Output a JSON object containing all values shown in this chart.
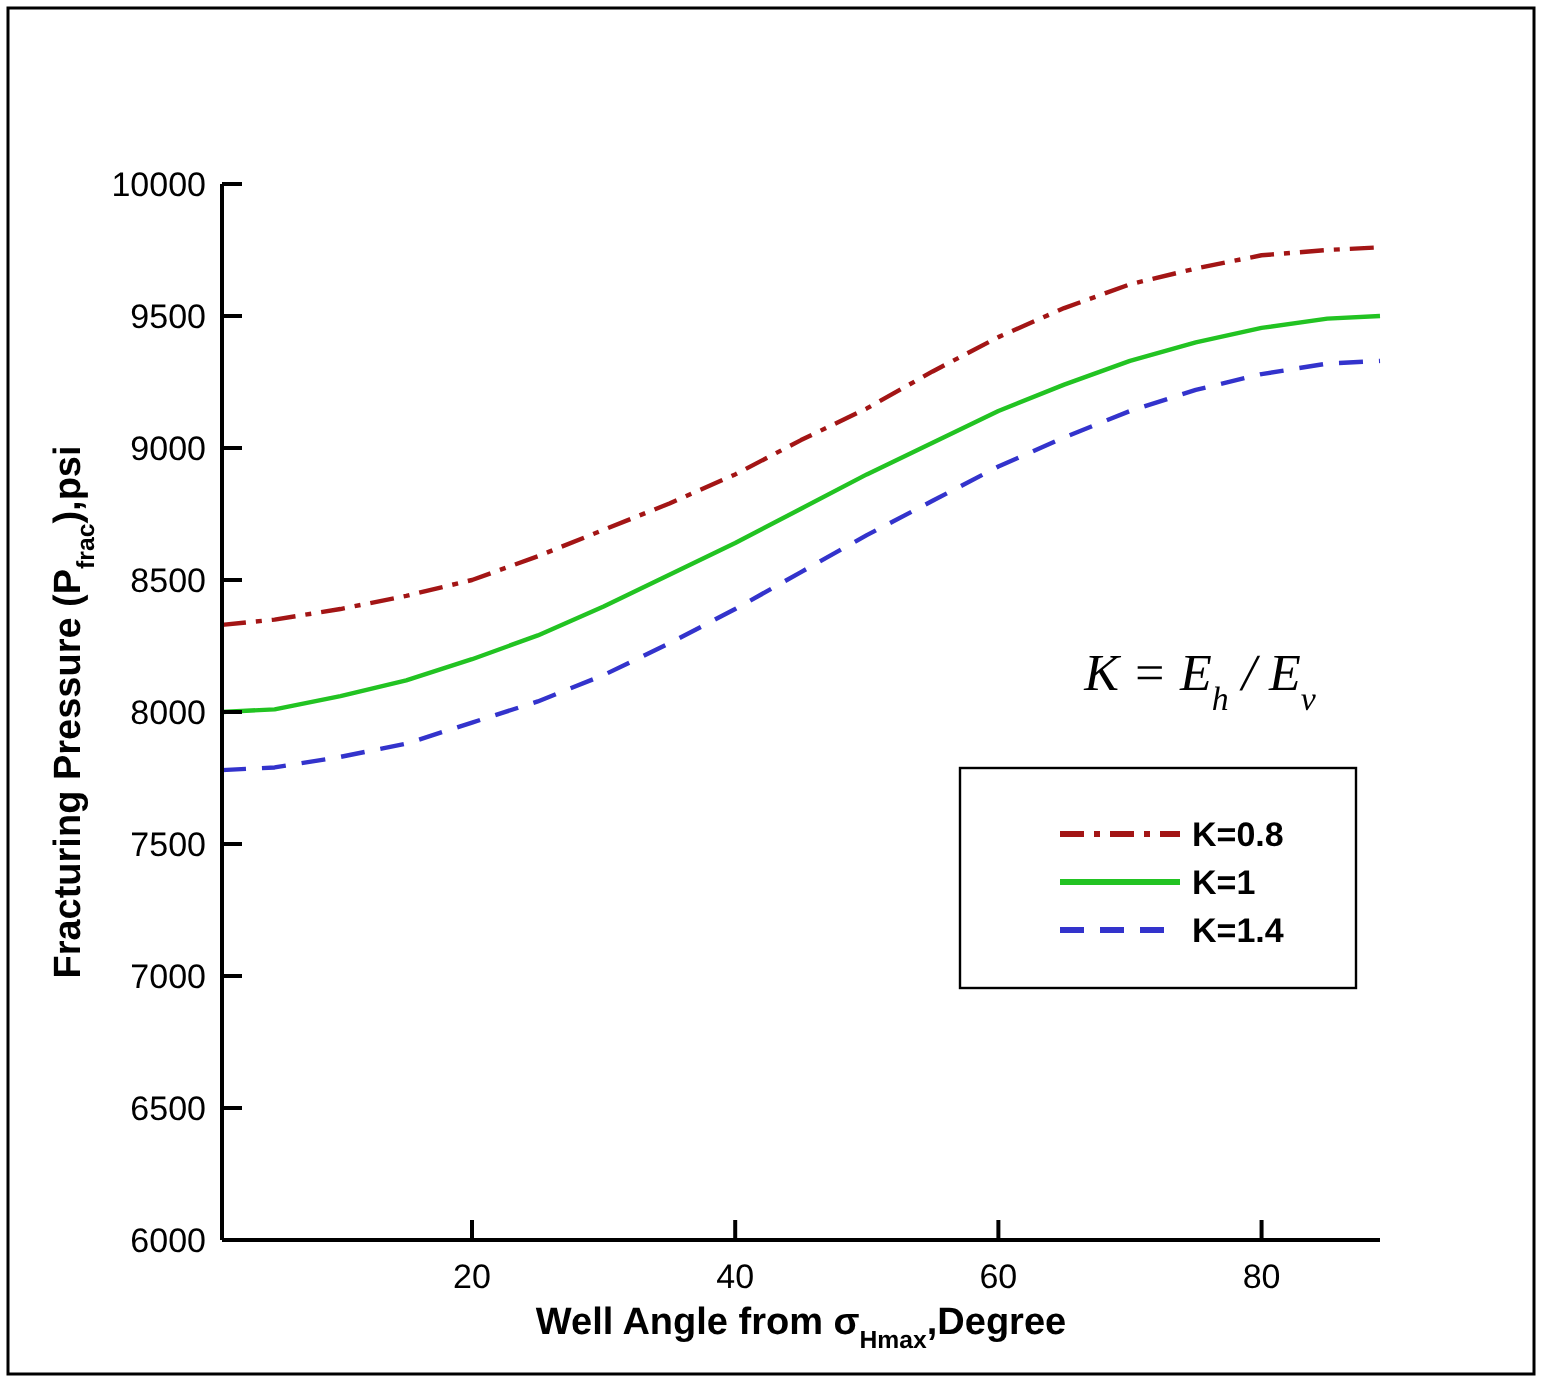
{
  "chart_data": {
    "type": "line",
    "xlabel": "Well Angle from σ$_{Hmax}$,Degree",
    "ylabel": "Fracturing Pressure (P$_{frac}$),psi",
    "x": [
      1,
      5,
      10,
      15,
      20,
      25,
      30,
      35,
      40,
      45,
      50,
      55,
      60,
      65,
      70,
      75,
      80,
      85,
      89
    ],
    "series": [
      {
        "name": "K=0.8",
        "color": "#a31515",
        "line_style": "dashdot",
        "values": [
          8330,
          8350,
          8390,
          8440,
          8500,
          8590,
          8690,
          8790,
          8900,
          9030,
          9150,
          9290,
          9420,
          9530,
          9620,
          9680,
          9730,
          9750,
          9760
        ]
      },
      {
        "name": "K=1",
        "color": "#22c322",
        "line_style": "solid",
        "values": [
          8000,
          8010,
          8060,
          8120,
          8200,
          8290,
          8400,
          8520,
          8640,
          8770,
          8900,
          9020,
          9140,
          9240,
          9330,
          9400,
          9455,
          9490,
          9500
        ]
      },
      {
        "name": "K=1.4",
        "color": "#3333cc",
        "line_style": "dashed",
        "values": [
          7780,
          7790,
          7830,
          7880,
          7960,
          8040,
          8140,
          8260,
          8390,
          8530,
          8670,
          8800,
          8930,
          9040,
          9140,
          9220,
          9280,
          9320,
          9330
        ]
      }
    ],
    "xlim": [
      1,
      89
    ],
    "xticks": [
      20,
      40,
      60,
      80
    ],
    "ylim": [
      6000,
      10000
    ],
    "yticks": [
      6000,
      6500,
      7000,
      7500,
      8000,
      8500,
      9000,
      9500,
      10000
    ],
    "annotations": [
      "K = E$_{h}$ / E$_{v}$"
    ],
    "legend": "right",
    "grid": false,
    "marker": "none"
  }
}
